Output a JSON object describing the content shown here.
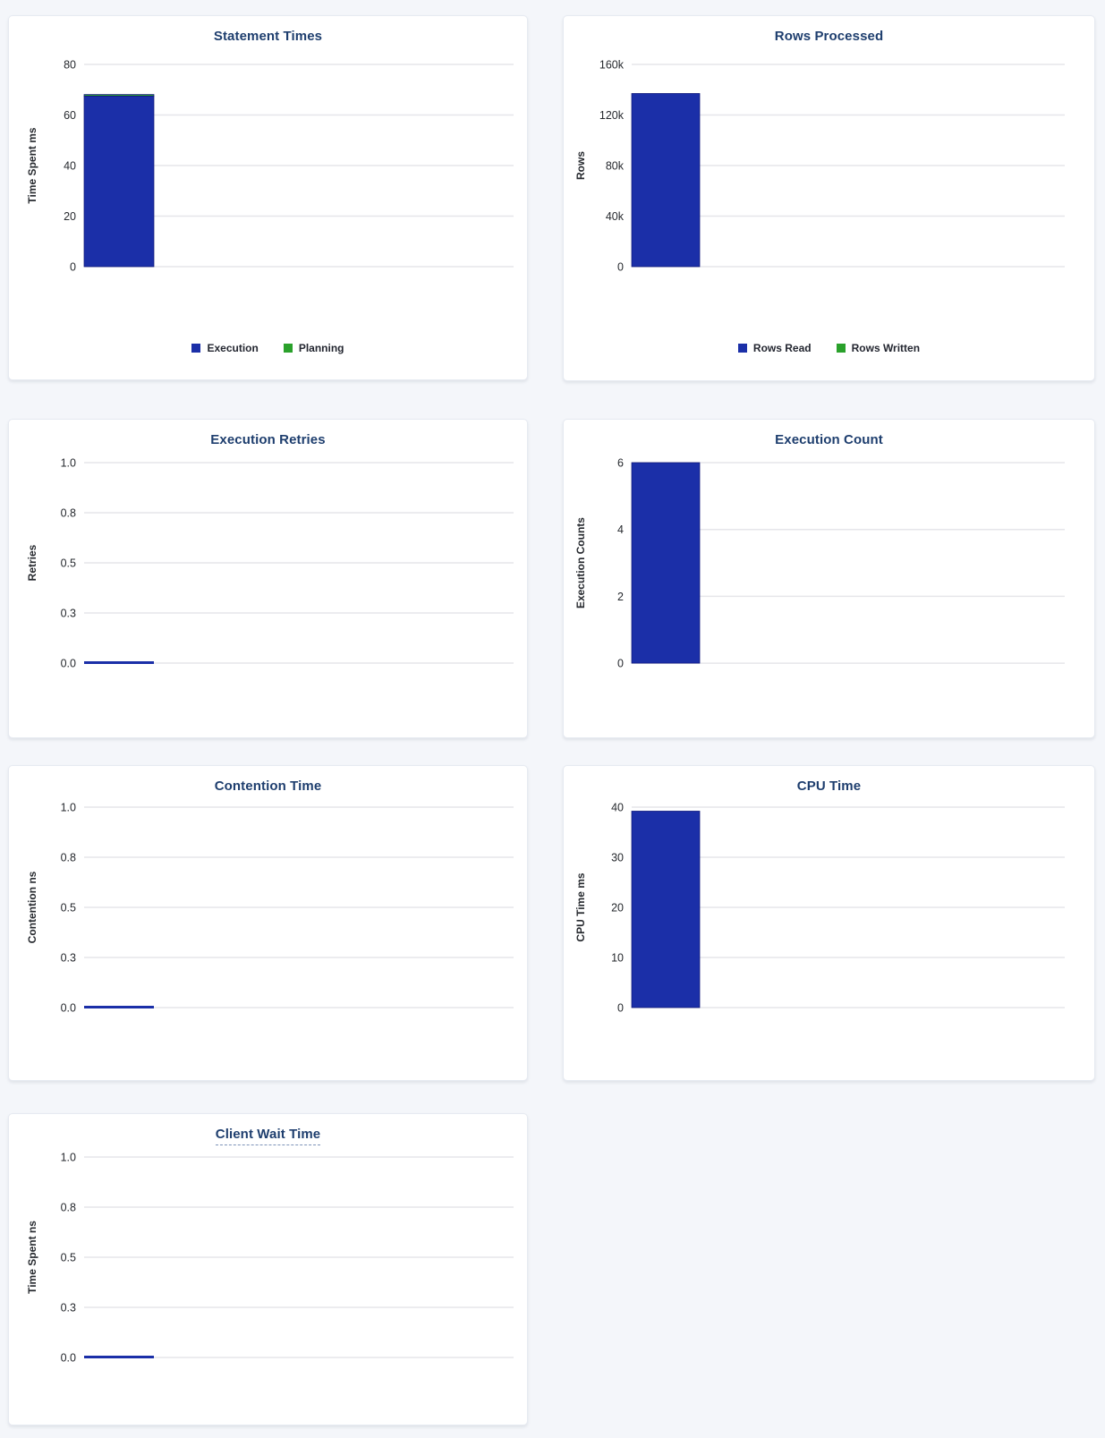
{
  "page": {
    "background_color": "#f4f6fa",
    "card_background": "#ffffff"
  },
  "colors": {
    "bar_blue": "#1b2fa8",
    "bar_green": "#2aa12b",
    "title_navy": "#1e3e6e",
    "axis_text": "#26292e",
    "gridline": "#e6e6ea"
  },
  "chart_data": [
    {
      "id": "statement-times",
      "type": "bar",
      "title": "Statement Times",
      "ylabel": "Time Spent ms",
      "ylim": [
        0,
        80
      ],
      "yticks": [
        0,
        20,
        40,
        60,
        80
      ],
      "ytick_labels": [
        "0",
        "20",
        "40",
        "60",
        "80"
      ],
      "grid": true,
      "stacked": true,
      "legend": true,
      "legend_position": "bottom",
      "series": [
        {
          "name": "Execution",
          "color": "#1b2fa8",
          "values": [
            67.5
          ]
        },
        {
          "name": "Planning",
          "color": "#2aa12b",
          "values": [
            0.6
          ]
        }
      ]
    },
    {
      "id": "rows-processed",
      "type": "bar",
      "title": "Rows Processed",
      "ylabel": "Rows",
      "ylim": [
        0,
        160000
      ],
      "yticks": [
        0,
        40000,
        80000,
        120000,
        160000
      ],
      "ytick_labels": [
        "0",
        "40k",
        "80k",
        "120k",
        "160k"
      ],
      "grid": true,
      "stacked": true,
      "legend": true,
      "legend_position": "bottom",
      "series": [
        {
          "name": "Rows Read",
          "color": "#1b2fa8",
          "values": [
            137000
          ]
        },
        {
          "name": "Rows Written",
          "color": "#2aa12b",
          "values": [
            0
          ]
        }
      ]
    },
    {
      "id": "execution-retries",
      "type": "bar",
      "title": "Execution Retries",
      "ylabel": "Retries",
      "ylim": [
        0,
        1
      ],
      "yticks": [
        0,
        0.25,
        0.5,
        0.75,
        1.0
      ],
      "ytick_labels": [
        "0.0",
        "0.3",
        "0.5",
        "0.8",
        "1.0"
      ],
      "grid": true,
      "stacked": false,
      "legend": false,
      "series": [
        {
          "name": "Retries",
          "color": "#1b2fa8",
          "values": [
            0
          ]
        }
      ]
    },
    {
      "id": "execution-count",
      "type": "bar",
      "title": "Execution Count",
      "ylabel": "Execution Counts",
      "ylim": [
        0,
        6
      ],
      "yticks": [
        0,
        2,
        4,
        6
      ],
      "ytick_labels": [
        "0",
        "2",
        "4",
        "6"
      ],
      "grid": true,
      "stacked": false,
      "legend": false,
      "series": [
        {
          "name": "Execution Counts",
          "color": "#1b2fa8",
          "values": [
            6
          ]
        }
      ]
    },
    {
      "id": "contention-time",
      "type": "bar",
      "title": "Contention Time",
      "ylabel": "Contention ns",
      "ylim": [
        0,
        1
      ],
      "yticks": [
        0,
        0.25,
        0.5,
        0.75,
        1.0
      ],
      "ytick_labels": [
        "0.0",
        "0.3",
        "0.5",
        "0.8",
        "1.0"
      ],
      "grid": true,
      "stacked": false,
      "legend": false,
      "series": [
        {
          "name": "Contention",
          "color": "#1b2fa8",
          "values": [
            0
          ]
        }
      ]
    },
    {
      "id": "cpu-time",
      "type": "bar",
      "title": "CPU Time",
      "ylabel": "CPU Time ms",
      "ylim": [
        0,
        40
      ],
      "yticks": [
        0,
        10,
        20,
        30,
        40
      ],
      "ytick_labels": [
        "0",
        "10",
        "20",
        "30",
        "40"
      ],
      "grid": true,
      "stacked": false,
      "legend": false,
      "series": [
        {
          "name": "CPU Time",
          "color": "#1b2fa8",
          "values": [
            39.2
          ]
        }
      ]
    },
    {
      "id": "client-wait-time",
      "type": "bar",
      "title": "Client Wait Time",
      "title_has_tooltip": true,
      "ylabel": "Time Spent ns",
      "ylim": [
        0,
        1
      ],
      "yticks": [
        0,
        0.25,
        0.5,
        0.75,
        1.0
      ],
      "ytick_labels": [
        "0.0",
        "0.3",
        "0.5",
        "0.8",
        "1.0"
      ],
      "grid": true,
      "stacked": false,
      "legend": false,
      "series": [
        {
          "name": "Time Spent",
          "color": "#1b2fa8",
          "values": [
            0
          ]
        }
      ]
    }
  ]
}
